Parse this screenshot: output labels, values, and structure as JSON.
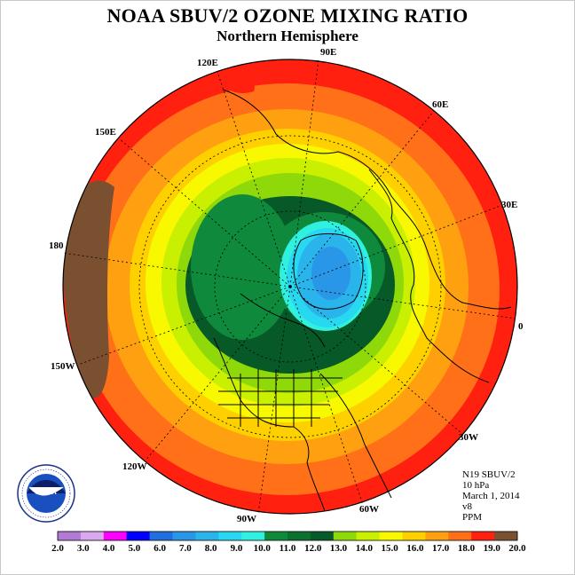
{
  "header": {
    "title": "NOAA SBUV/2 OZONE MIXING RATIO",
    "subtitle": "Northern Hemisphere"
  },
  "longitude_labels": [
    "90E",
    "60E",
    "30E",
    "0",
    "30W",
    "60W",
    "90W",
    "120W",
    "150W",
    "180",
    "150E",
    "120E"
  ],
  "info": {
    "satellite": "N19 SBUV/2",
    "level": "10 hPa",
    "date": "March 1, 2014",
    "version": "v8",
    "units": "PPM"
  },
  "logo": {
    "text": "NOAA",
    "ring_text": "NATIONAL OCEANIC AND ATMOSPHERIC ADMINISTRATION · U.S. DEPARTMENT OF COMMERCE"
  },
  "colorbar": {
    "ticks": [
      "2.0",
      "3.0",
      "4.0",
      "5.0",
      "6.0",
      "7.0",
      "8.0",
      "9.0",
      "10.0",
      "11.0",
      "12.0",
      "13.0",
      "14.0",
      "15.0",
      "16.0",
      "17.0",
      "18.0",
      "19.0",
      "20.0"
    ],
    "colors": [
      "#b07ad6",
      "#d9a8f0",
      "#ff00ff",
      "#0000ff",
      "#1f6fe0",
      "#2a96e8",
      "#2ab4ec",
      "#28d8f0",
      "#30f0e0",
      "#0f8a3c",
      "#0b7030",
      "#075a28",
      "#8fd80a",
      "#c8f000",
      "#f8f800",
      "#ffd000",
      "#ffa010",
      "#ff7018",
      "#ff2010",
      "#7a5030"
    ]
  }
}
